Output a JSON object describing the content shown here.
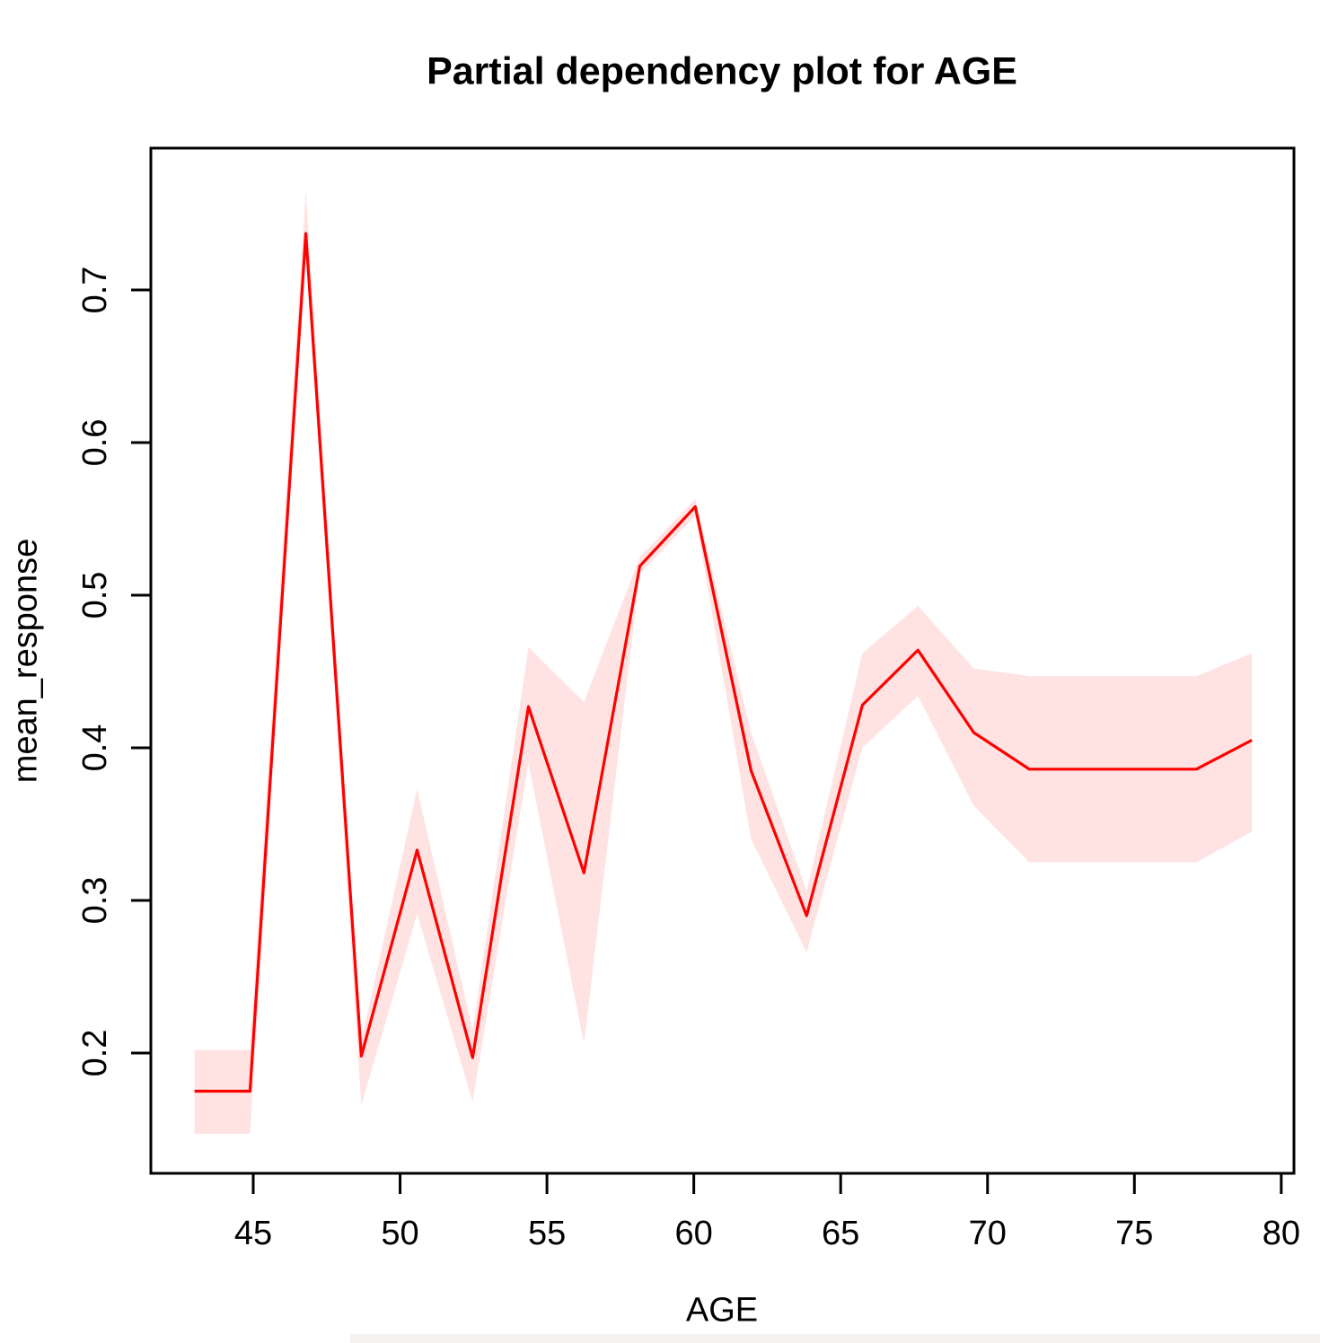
{
  "chart_data": {
    "type": "line",
    "title": "Partial dependency plot for AGE",
    "xlabel": "AGE",
    "ylabel": "mean_response",
    "grid": false,
    "legend": "none",
    "xlim": [
      41.5,
      80.4
    ],
    "ylim": [
      0.12,
      0.79
    ],
    "x": [
      43.0,
      44.89,
      46.79,
      48.68,
      50.58,
      52.47,
      54.37,
      56.26,
      58.16,
      60.05,
      61.95,
      63.84,
      65.74,
      67.63,
      69.53,
      71.42,
      73.32,
      75.21,
      77.11,
      79.0
    ],
    "series": [
      {
        "name": "mean_response",
        "values": [
          0.175,
          0.175,
          0.737,
          0.198,
          0.333,
          0.197,
          0.427,
          0.318,
          0.519,
          0.558,
          0.385,
          0.29,
          0.428,
          0.464,
          0.41,
          0.386,
          0.386,
          0.386,
          0.386,
          0.405
        ]
      },
      {
        "name": "lower_bound",
        "values": [
          0.147,
          0.147,
          0.73,
          0.166,
          0.291,
          0.168,
          0.39,
          0.206,
          0.514,
          0.552,
          0.34,
          0.266,
          0.4,
          0.434,
          0.362,
          0.325,
          0.325,
          0.325,
          0.325,
          0.345
        ]
      },
      {
        "name": "upper_bound",
        "values": [
          0.202,
          0.202,
          0.765,
          0.208,
          0.373,
          0.215,
          0.466,
          0.43,
          0.525,
          0.563,
          0.41,
          0.306,
          0.462,
          0.493,
          0.452,
          0.447,
          0.447,
          0.447,
          0.447,
          0.462
        ]
      }
    ],
    "x_ticks": {
      "values": [
        45,
        50,
        55,
        60,
        65,
        70,
        75,
        80
      ],
      "labels": [
        "45",
        "50",
        "55",
        "60",
        "65",
        "70",
        "75",
        "80"
      ]
    },
    "y_ticks": {
      "values": [
        0.2,
        0.3,
        0.4,
        0.5,
        0.6,
        0.7
      ],
      "labels": [
        "0.2",
        "0.3",
        "0.4",
        "0.5",
        "0.6",
        "0.7"
      ]
    },
    "colors": {
      "line": "#ff0000",
      "band": "#ffe3e3",
      "axis": "#000000",
      "background": "#ffffff"
    }
  }
}
